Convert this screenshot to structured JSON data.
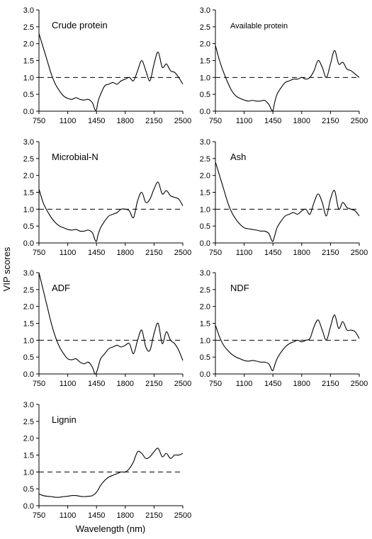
{
  "figure": {
    "ylabel": "VIP scores",
    "xlabel": "Wavelength (nm)"
  },
  "chart_data": [
    {
      "type": "line",
      "title": "Crude protein",
      "xlabel": "Wavelength (nm)",
      "ylabel": "VIP scores",
      "xlim": [
        750,
        2500
      ],
      "ylim": [
        0,
        3
      ],
      "xticks": [
        750,
        1100,
        1450,
        1800,
        2150,
        2500
      ],
      "yticks": [
        0.0,
        0.5,
        1.0,
        1.5,
        2.0,
        2.5,
        3.0
      ],
      "threshold": 1.0,
      "x": [
        750,
        800,
        850,
        900,
        950,
        1000,
        1050,
        1100,
        1150,
        1200,
        1250,
        1300,
        1350,
        1400,
        1430,
        1450,
        1470,
        1500,
        1550,
        1600,
        1650,
        1700,
        1750,
        1800,
        1850,
        1900,
        1950,
        2000,
        2050,
        2100,
        2150,
        2200,
        2250,
        2300,
        2350,
        2400,
        2450,
        2500
      ],
      "series": [
        {
          "values": [
            2.3,
            1.9,
            1.5,
            1.1,
            0.8,
            0.6,
            0.45,
            0.38,
            0.35,
            0.4,
            0.35,
            0.33,
            0.35,
            0.25,
            0.05,
            0.05,
            0.3,
            0.5,
            0.75,
            0.8,
            0.85,
            0.8,
            0.9,
            0.95,
            1.0,
            0.9,
            1.2,
            1.5,
            1.2,
            0.9,
            1.4,
            1.75,
            1.3,
            1.4,
            1.2,
            1.15,
            1.0,
            0.8
          ]
        }
      ]
    },
    {
      "type": "line",
      "title": "Available protein",
      "xlabel": "Wavelength (nm)",
      "ylabel": "VIP scores",
      "xlim": [
        750,
        2500
      ],
      "ylim": [
        0,
        3
      ],
      "xticks": [
        750,
        1100,
        1450,
        1800,
        2150,
        2500
      ],
      "yticks": [
        0.0,
        0.5,
        1.0,
        1.5,
        2.0,
        2.5,
        3.0
      ],
      "threshold": 1.0,
      "x": [
        750,
        800,
        850,
        900,
        950,
        1000,
        1050,
        1100,
        1150,
        1200,
        1250,
        1300,
        1350,
        1400,
        1430,
        1450,
        1470,
        1500,
        1550,
        1600,
        1650,
        1700,
        1750,
        1800,
        1850,
        1900,
        1950,
        2000,
        2050,
        2100,
        2150,
        2200,
        2250,
        2300,
        2350,
        2400,
        2450,
        2500
      ],
      "series": [
        {
          "values": [
            1.95,
            1.5,
            1.15,
            0.85,
            0.6,
            0.45,
            0.38,
            0.33,
            0.3,
            0.32,
            0.3,
            0.3,
            0.32,
            0.2,
            0.05,
            0.02,
            0.25,
            0.5,
            0.7,
            0.85,
            0.9,
            0.95,
            0.95,
            1.0,
            0.95,
            1.0,
            1.2,
            1.5,
            1.3,
            1.0,
            1.4,
            1.8,
            1.4,
            1.45,
            1.25,
            1.2,
            1.1,
            1.0
          ]
        }
      ]
    },
    {
      "type": "line",
      "title": "Microbial-N",
      "xlabel": "Wavelength (nm)",
      "ylabel": "VIP scores",
      "xlim": [
        750,
        2500
      ],
      "ylim": [
        0,
        3
      ],
      "xticks": [
        750,
        1100,
        1450,
        1800,
        2150,
        2500
      ],
      "yticks": [
        0.0,
        0.5,
        1.0,
        1.5,
        2.0,
        2.5,
        3.0
      ],
      "threshold": 1.0,
      "x": [
        750,
        800,
        850,
        900,
        950,
        1000,
        1050,
        1100,
        1150,
        1200,
        1250,
        1300,
        1350,
        1400,
        1430,
        1450,
        1470,
        1500,
        1550,
        1600,
        1650,
        1700,
        1750,
        1800,
        1850,
        1900,
        1950,
        2000,
        2050,
        2100,
        2150,
        2200,
        2250,
        2300,
        2350,
        2400,
        2450,
        2500
      ],
      "series": [
        {
          "values": [
            1.6,
            1.2,
            0.95,
            0.75,
            0.6,
            0.5,
            0.45,
            0.4,
            0.38,
            0.4,
            0.35,
            0.35,
            0.38,
            0.3,
            0.1,
            0.05,
            0.25,
            0.45,
            0.65,
            0.8,
            0.85,
            0.9,
            1.0,
            1.0,
            0.95,
            0.75,
            1.25,
            1.5,
            1.2,
            1.3,
            1.6,
            1.8,
            1.45,
            1.55,
            1.4,
            1.35,
            1.3,
            1.1
          ]
        }
      ]
    },
    {
      "type": "line",
      "title": "Ash",
      "xlabel": "Wavelength (nm)",
      "ylabel": "VIP scores",
      "xlim": [
        750,
        2500
      ],
      "ylim": [
        0,
        3
      ],
      "xticks": [
        750,
        1100,
        1450,
        1800,
        2150,
        2500
      ],
      "yticks": [
        0.0,
        0.5,
        1.0,
        1.5,
        2.0,
        2.5,
        3.0
      ],
      "threshold": 1.0,
      "x": [
        750,
        800,
        850,
        900,
        950,
        1000,
        1050,
        1100,
        1150,
        1200,
        1250,
        1300,
        1350,
        1400,
        1430,
        1450,
        1470,
        1500,
        1550,
        1600,
        1650,
        1700,
        1750,
        1800,
        1850,
        1900,
        1950,
        2000,
        2050,
        2100,
        2150,
        2200,
        2250,
        2300,
        2350,
        2400,
        2450,
        2500
      ],
      "series": [
        {
          "values": [
            2.4,
            2.0,
            1.6,
            1.2,
            0.9,
            0.7,
            0.55,
            0.45,
            0.42,
            0.4,
            0.38,
            0.35,
            0.35,
            0.28,
            0.1,
            0.05,
            0.2,
            0.45,
            0.65,
            0.8,
            0.85,
            0.9,
            0.85,
            0.95,
            1.0,
            0.85,
            1.2,
            1.45,
            1.2,
            0.8,
            1.3,
            1.55,
            1.0,
            1.2,
            1.05,
            1.0,
            0.95,
            0.8
          ]
        }
      ]
    },
    {
      "type": "line",
      "title": "ADF",
      "xlabel": "Wavelength (nm)",
      "ylabel": "VIP scores",
      "xlim": [
        750,
        2500
      ],
      "ylim": [
        0,
        3
      ],
      "xticks": [
        750,
        1100,
        1450,
        1800,
        2150,
        2500
      ],
      "yticks": [
        0.0,
        0.5,
        1.0,
        1.5,
        2.0,
        2.5,
        3.0
      ],
      "threshold": 1.0,
      "x": [
        750,
        800,
        850,
        900,
        950,
        1000,
        1050,
        1100,
        1150,
        1200,
        1250,
        1300,
        1350,
        1400,
        1430,
        1450,
        1470,
        1500,
        1550,
        1600,
        1650,
        1700,
        1750,
        1800,
        1850,
        1900,
        1950,
        2000,
        2050,
        2100,
        2150,
        2200,
        2250,
        2300,
        2350,
        2400,
        2450,
        2500
      ],
      "series": [
        {
          "values": [
            3.0,
            2.5,
            2.0,
            1.5,
            1.1,
            0.8,
            0.6,
            0.45,
            0.42,
            0.45,
            0.35,
            0.3,
            0.35,
            0.2,
            0.0,
            0.05,
            0.2,
            0.45,
            0.6,
            0.75,
            0.8,
            0.85,
            0.8,
            0.85,
            0.9,
            0.6,
            1.0,
            1.3,
            0.8,
            0.7,
            1.2,
            1.5,
            0.9,
            1.25,
            1.0,
            0.9,
            0.7,
            0.4
          ]
        }
      ]
    },
    {
      "type": "line",
      "title": "NDF",
      "xlabel": "Wavelength (nm)",
      "ylabel": "VIP scores",
      "xlim": [
        750,
        2500
      ],
      "ylim": [
        0,
        3
      ],
      "xticks": [
        750,
        1100,
        1450,
        1800,
        2150,
        2500
      ],
      "yticks": [
        0.0,
        0.5,
        1.0,
        1.5,
        2.0,
        2.5,
        3.0
      ],
      "threshold": 1.0,
      "x": [
        750,
        800,
        850,
        900,
        950,
        1000,
        1050,
        1100,
        1150,
        1200,
        1250,
        1300,
        1350,
        1400,
        1430,
        1450,
        1470,
        1500,
        1550,
        1600,
        1650,
        1700,
        1750,
        1800,
        1850,
        1900,
        1950,
        2000,
        2050,
        2100,
        2150,
        2200,
        2250,
        2300,
        2350,
        2400,
        2450,
        2500
      ],
      "series": [
        {
          "values": [
            1.45,
            1.1,
            0.85,
            0.7,
            0.58,
            0.5,
            0.45,
            0.4,
            0.38,
            0.4,
            0.38,
            0.35,
            0.35,
            0.3,
            0.15,
            0.1,
            0.25,
            0.45,
            0.65,
            0.8,
            0.9,
            0.95,
            1.0,
            0.95,
            1.0,
            1.05,
            1.4,
            1.6,
            1.3,
            1.0,
            1.4,
            1.75,
            1.35,
            1.55,
            1.3,
            1.3,
            1.25,
            1.05
          ]
        }
      ]
    },
    {
      "type": "line",
      "title": "Lignin",
      "xlabel": "Wavelength (nm)",
      "ylabel": "VIP scores",
      "xlim": [
        750,
        2500
      ],
      "ylim": [
        0,
        3
      ],
      "xticks": [
        750,
        1100,
        1450,
        1800,
        2150,
        2500
      ],
      "yticks": [
        0.0,
        0.5,
        1.0,
        1.5,
        2.0,
        2.5,
        3.0
      ],
      "threshold": 1.0,
      "x": [
        750,
        800,
        850,
        900,
        950,
        1000,
        1050,
        1100,
        1150,
        1200,
        1250,
        1300,
        1350,
        1400,
        1450,
        1500,
        1550,
        1600,
        1650,
        1700,
        1750,
        1800,
        1850,
        1900,
        1950,
        2000,
        2050,
        2100,
        2150,
        2200,
        2250,
        2300,
        2350,
        2400,
        2450,
        2500
      ],
      "series": [
        {
          "values": [
            0.35,
            0.3,
            0.28,
            0.27,
            0.25,
            0.25,
            0.27,
            0.28,
            0.3,
            0.3,
            0.28,
            0.27,
            0.28,
            0.3,
            0.4,
            0.6,
            0.75,
            0.85,
            0.9,
            0.95,
            1.0,
            1.0,
            1.1,
            1.3,
            1.6,
            1.55,
            1.4,
            1.45,
            1.6,
            1.7,
            1.45,
            1.55,
            1.4,
            1.5,
            1.5,
            1.55
          ]
        }
      ]
    }
  ]
}
